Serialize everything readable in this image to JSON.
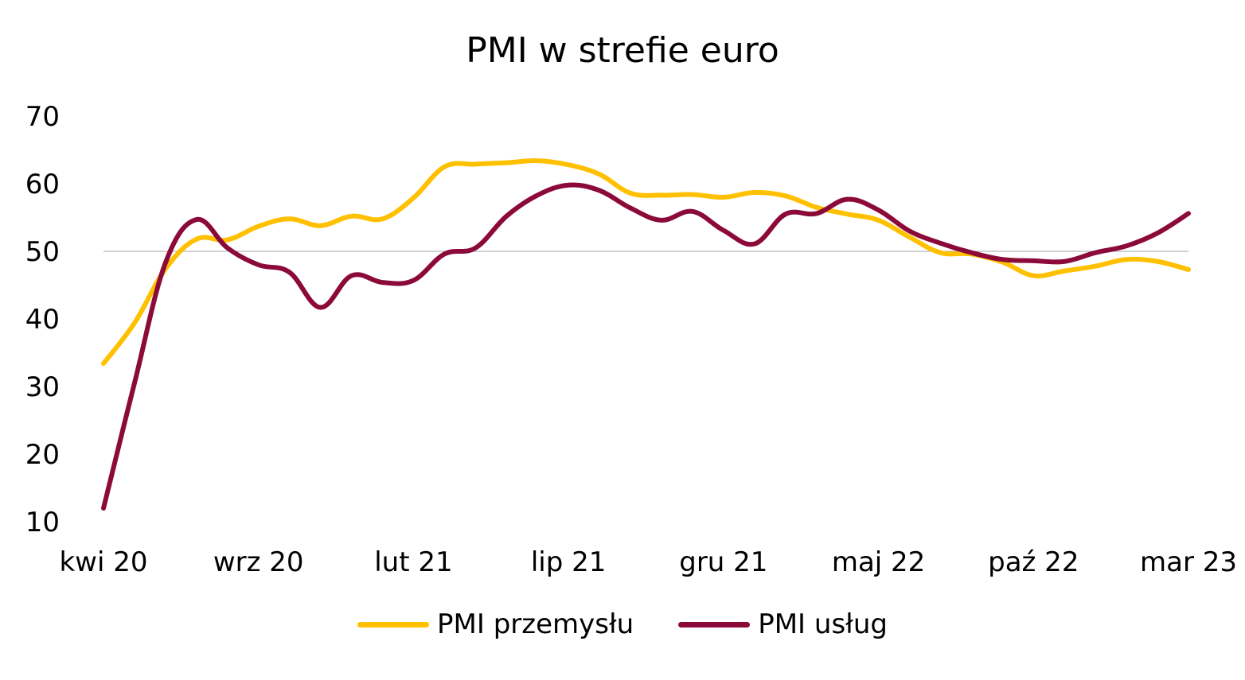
{
  "chart_data": {
    "type": "line",
    "title": "PMI w strefie euro",
    "xlabel": "",
    "ylabel": "",
    "ylim": [
      10,
      70
    ],
    "yticks": [
      10,
      20,
      30,
      40,
      50,
      60,
      70
    ],
    "reference_line": 50,
    "x": [
      "kwi 20",
      "maj 20",
      "cze 20",
      "lip 20",
      "sie 20",
      "wrz 20",
      "paź 20",
      "lis 20",
      "gru 20",
      "sty 21",
      "lut 21",
      "mar 21",
      "kwi 21",
      "maj 21",
      "cze 21",
      "lip 21",
      "sie 21",
      "wrz 21",
      "paź 21",
      "lis 21",
      "gru 21",
      "sty 22",
      "lut 22",
      "mar 22",
      "kwi 22",
      "maj 22",
      "cze 22",
      "lip 22",
      "sie 22",
      "wrz 22",
      "paź 22",
      "lis 22",
      "gru 22",
      "sty 23",
      "lut 23",
      "mar 23"
    ],
    "x_tick_labels": [
      "kwi 20",
      "wrz 20",
      "lut 21",
      "lip 21",
      "gru 21",
      "maj 22",
      "paź 22",
      "mar 23"
    ],
    "series": [
      {
        "name": "PMI przemysłu",
        "color": "#FFC000",
        "values": [
          33.4,
          39.4,
          47.4,
          51.8,
          51.7,
          53.7,
          54.8,
          53.8,
          55.2,
          54.8,
          57.9,
          62.5,
          62.9,
          63.1,
          63.4,
          62.8,
          61.4,
          58.6,
          58.3,
          58.4,
          58.0,
          58.7,
          58.2,
          56.5,
          55.5,
          54.6,
          52.1,
          49.8,
          49.6,
          48.4,
          46.4,
          47.1,
          47.8,
          48.8,
          48.5,
          47.3
        ]
      },
      {
        "name": "PMI usług",
        "color": "#8B0A3A",
        "values": [
          12.0,
          30.5,
          48.3,
          54.7,
          50.5,
          48.0,
          46.9,
          41.7,
          46.4,
          45.4,
          45.7,
          49.6,
          50.5,
          55.2,
          58.3,
          59.8,
          59.0,
          56.4,
          54.6,
          55.9,
          53.1,
          51.1,
          55.5,
          55.6,
          57.7,
          56.1,
          53.0,
          51.2,
          49.8,
          48.8,
          48.6,
          48.5,
          49.8,
          50.8,
          52.7,
          55.6
        ]
      }
    ],
    "legend_position": "bottom",
    "grid": false
  }
}
